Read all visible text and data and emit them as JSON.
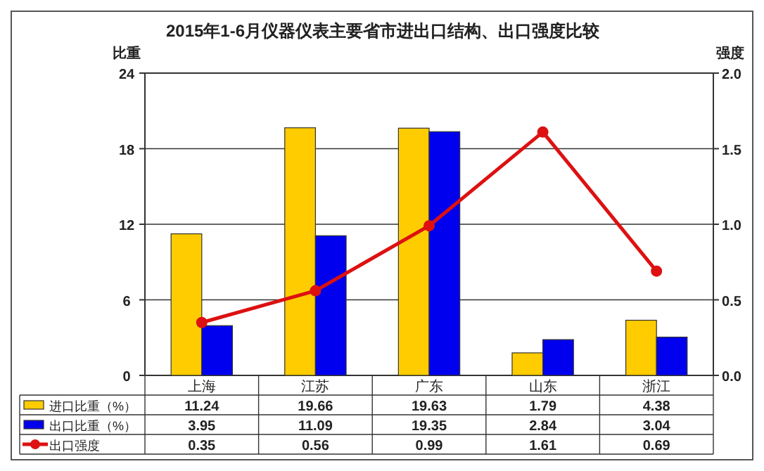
{
  "chart_data": {
    "type": "bar",
    "title": "2015年1-6月仪器仪表主要省市进出口结构、出口强度比较",
    "ylabel": "比重",
    "y2label": "强度",
    "categories": [
      "上海",
      "江苏",
      "广东",
      "山东",
      "浙江"
    ],
    "series": [
      {
        "name": "进口比重（%）",
        "color": "#ffcc00",
        "values": [
          11.24,
          19.66,
          19.63,
          1.79,
          4.38
        ]
      },
      {
        "name": "出口比重（%）",
        "color": "#0000ee",
        "values": [
          3.95,
          11.09,
          19.35,
          2.84,
          3.04
        ]
      },
      {
        "name": "出口强度",
        "type": "line",
        "axis": "y2",
        "color": "#dd1111",
        "marker": "circle",
        "values": [
          0.35,
          0.56,
          0.99,
          1.61,
          0.69
        ]
      }
    ],
    "ylim": [
      0,
      24
    ],
    "yticks": [
      0,
      6,
      12,
      18,
      24
    ],
    "y2lim": [
      0,
      2
    ],
    "y2ticks": [
      {
        "value": 0,
        "label": "0.0"
      },
      {
        "value": 0.5,
        "label": "0.5"
      },
      {
        "value": 1,
        "label": "1.0"
      },
      {
        "value": 1.5,
        "label": "1.5"
      },
      {
        "value": 2,
        "label": "2.0"
      }
    ],
    "grid": "y",
    "data_labels": true,
    "legend": "bottom"
  }
}
